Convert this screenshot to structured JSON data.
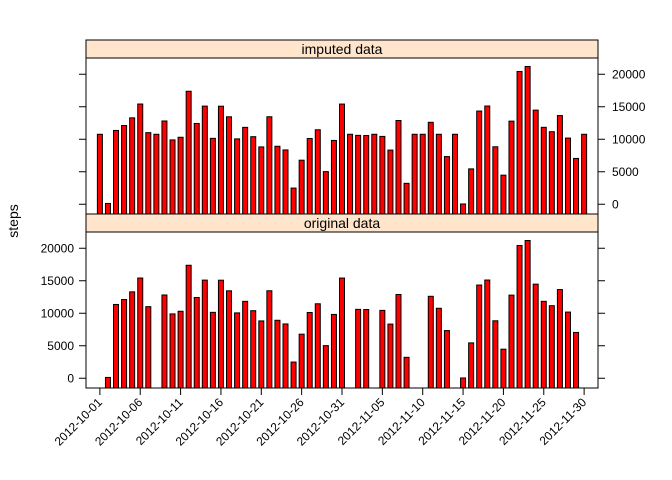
{
  "chart_data": {
    "type": "bar",
    "ylabel": "steps",
    "bar_color": "#ff0000",
    "strip_color": "#ffe5cc",
    "ylim": [
      -1500,
      22500
    ],
    "yticks": [
      0,
      5000,
      10000,
      15000,
      20000
    ],
    "x_tick_labels": [
      "2012-10-01",
      "2012-10-06",
      "2012-10-11",
      "2012-10-16",
      "2012-10-21",
      "2012-10-26",
      "2012-10-31",
      "2012-11-05",
      "2012-11-10",
      "2012-11-15",
      "2012-11-20",
      "2012-11-25",
      "2012-11-30"
    ],
    "x_tick_every": 5,
    "panels": [
      {
        "name": "imputed data",
        "values": [
          10766,
          126,
          11352,
          12116,
          13294,
          15420,
          11015,
          10766,
          12811,
          9900,
          10304,
          17382,
          12426,
          15098,
          10139,
          15084,
          13452,
          10056,
          11829,
          10395,
          8821,
          13460,
          8918,
          8355,
          2492,
          6778,
          10119,
          11458,
          5018,
          9819,
          15414,
          10766,
          10600,
          10571,
          10766,
          10439,
          8334,
          12883,
          3219,
          10766,
          10766,
          12608,
          10765,
          7336,
          10766,
          41,
          5441,
          14339,
          15110,
          8841,
          4472,
          12787,
          20427,
          21194,
          14478,
          11834,
          11162,
          13646,
          10183,
          7047,
          10766
        ]
      },
      {
        "name": "original data",
        "values": [
          null,
          126,
          11352,
          12116,
          13294,
          15420,
          11015,
          null,
          12811,
          9900,
          10304,
          17382,
          12426,
          15098,
          10139,
          15084,
          13452,
          10056,
          11829,
          10395,
          8821,
          13460,
          8918,
          8355,
          2492,
          6778,
          10119,
          11458,
          5018,
          9819,
          15414,
          null,
          10600,
          10571,
          null,
          10439,
          8334,
          12883,
          3219,
          null,
          null,
          12608,
          10765,
          7336,
          null,
          41,
          5441,
          14339,
          15110,
          8841,
          4472,
          12787,
          20427,
          21194,
          14478,
          11834,
          11162,
          13646,
          10183,
          7047,
          null
        ]
      }
    ]
  }
}
